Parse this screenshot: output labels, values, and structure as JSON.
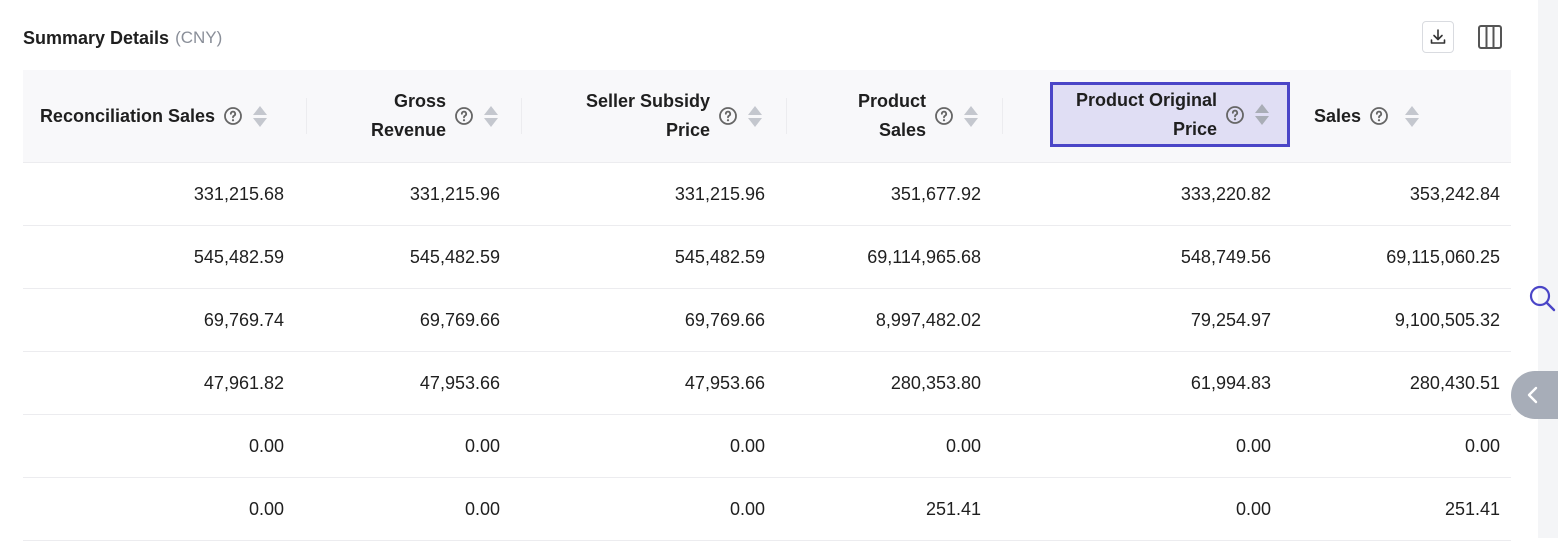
{
  "header": {
    "title": "Summary Details",
    "currency": "(CNY)"
  },
  "toolbar": {
    "download_icon": "download-icon",
    "columns_icon": "columns-icon"
  },
  "table": {
    "columns": [
      {
        "label": "Reconciliation Sales",
        "key": "reconciliation_sales"
      },
      {
        "label": "Gross Revenue",
        "key": "gross_revenue"
      },
      {
        "label": "Seller Subsidy Price",
        "key": "seller_subsidy_price"
      },
      {
        "label": "Product Sales",
        "key": "product_sales"
      },
      {
        "label": "Product Original Price",
        "key": "product_original_price"
      },
      {
        "label": "Sales",
        "key": "sales"
      }
    ],
    "rows": [
      [
        "331,215.68",
        "331,215.96",
        "331,215.96",
        "351,677.92",
        "333,220.82",
        "353,242.84"
      ],
      [
        "545,482.59",
        "545,482.59",
        "545,482.59",
        "69,114,965.68",
        "548,749.56",
        "69,115,060.25"
      ],
      [
        "69,769.74",
        "69,769.66",
        "69,769.66",
        "8,997,482.02",
        "79,254.97",
        "9,100,505.32"
      ],
      [
        "47,961.82",
        "47,953.66",
        "47,953.66",
        "280,353.80",
        "61,994.83",
        "280,430.51"
      ],
      [
        "0.00",
        "0.00",
        "0.00",
        "0.00",
        "0.00",
        "0.00"
      ],
      [
        "0.00",
        "0.00",
        "0.00",
        "251.41",
        "0.00",
        "251.41"
      ]
    ]
  },
  "colors": {
    "accent": "#4a45c7",
    "active_header_bg": "#e0def4",
    "header_bg": "#f8f8fa"
  }
}
